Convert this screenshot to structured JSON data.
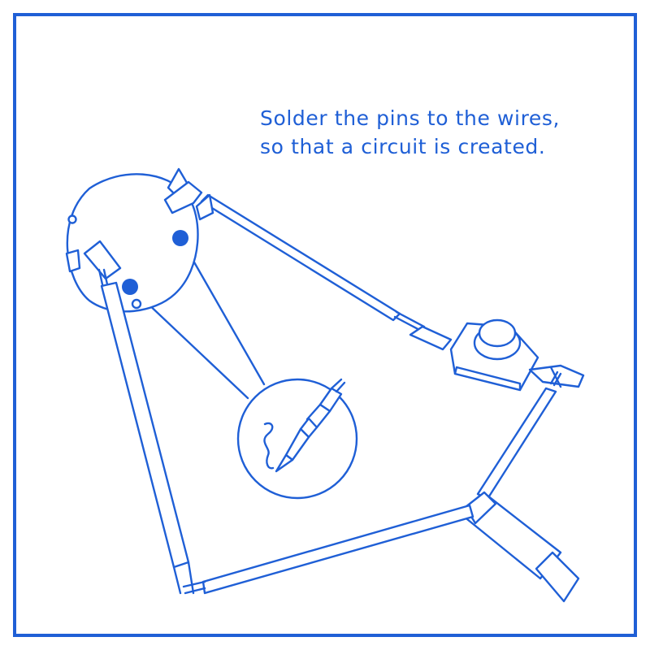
{
  "instruction": {
    "line1": "Solder the pins to the wires,",
    "line2": "so that a circuit is created."
  },
  "colors": {
    "accent": "#1f5fd6",
    "background": "#ffffff"
  },
  "icons": [
    "circuit-board-icon",
    "push-button-switch-icon",
    "battery-holder-icon",
    "soldering-iron-icon",
    "solder-wire-icon"
  ]
}
